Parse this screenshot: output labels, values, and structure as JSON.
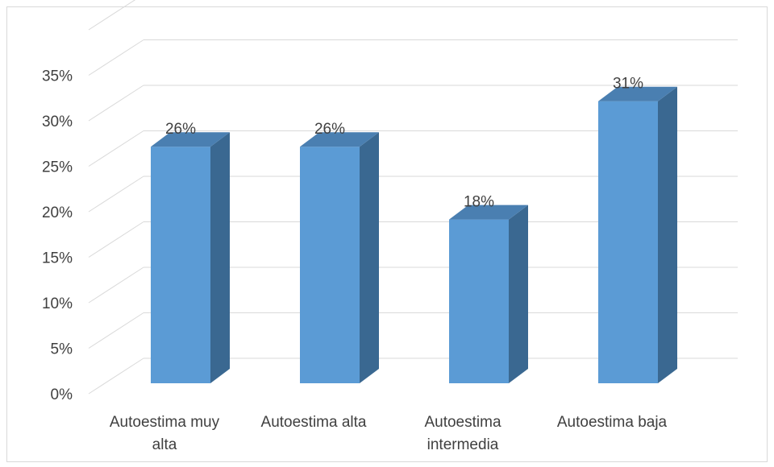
{
  "chart_data": {
    "type": "bar",
    "title": "",
    "xlabel": "",
    "ylabel": "",
    "categories": [
      [
        "Autoestima muy",
        "alta"
      ],
      [
        "Autoestima alta"
      ],
      [
        "Autoestima",
        "intermedia"
      ],
      [
        "Autoestima baja"
      ]
    ],
    "values": [
      26,
      26,
      18,
      31
    ],
    "data_labels": [
      "26%",
      "26%",
      "18%",
      "31%"
    ],
    "yticks": [
      "0%",
      "5%",
      "10%",
      "15%",
      "20%",
      "25%",
      "30%",
      "35%"
    ],
    "ylim": [
      0,
      35
    ],
    "grid": true,
    "style": "3d-column",
    "colors": {
      "front": "#5b9bd5",
      "side": "#3a6891",
      "top": "#4a7fb1",
      "gridline": "#d9d9d9",
      "text": "#404040"
    }
  }
}
